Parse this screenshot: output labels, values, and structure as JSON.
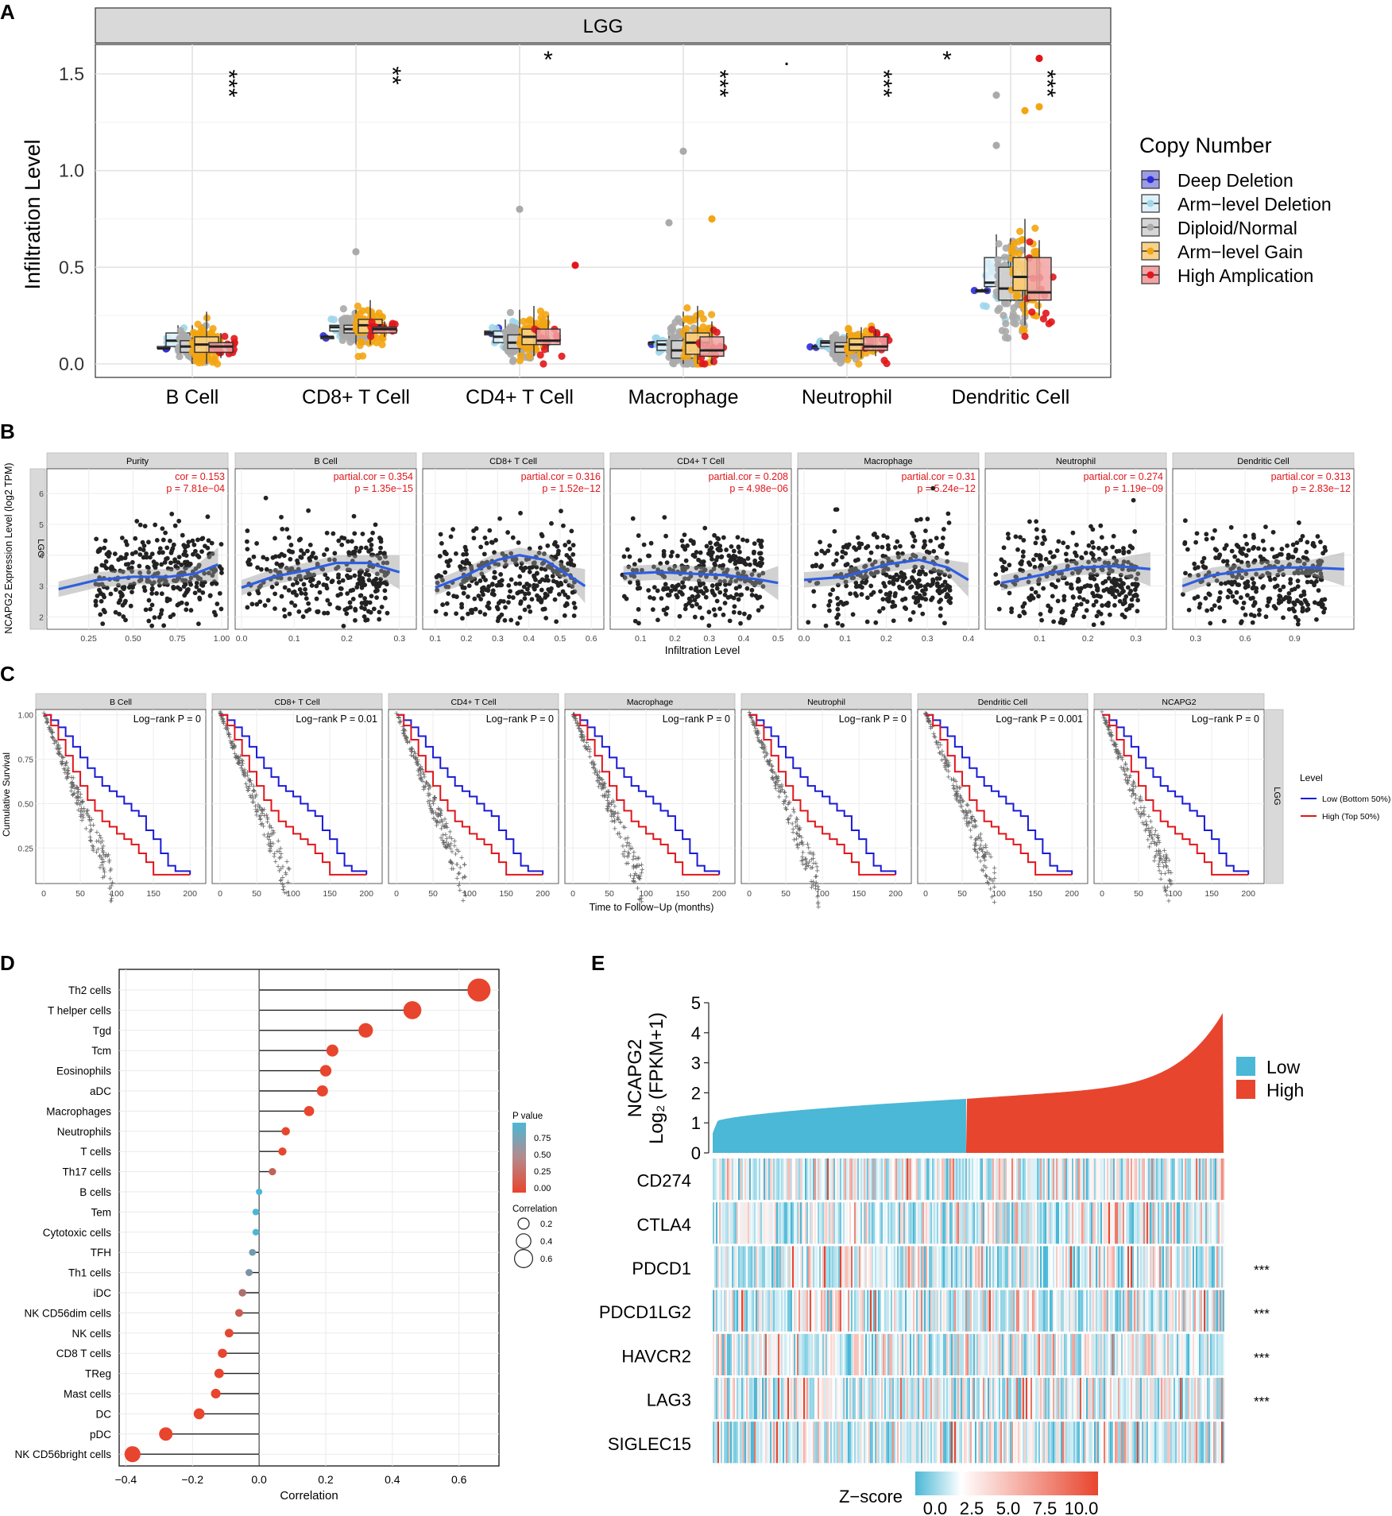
{
  "panel_labels": [
    "A",
    "B",
    "C",
    "D",
    "E"
  ],
  "chart_data": [
    {
      "id": "A",
      "type": "box",
      "title": "LGG",
      "xlabel": "",
      "ylabel": "Infiltration Level",
      "ylim": [
        0,
        1.62
      ],
      "yticks": [
        0.0,
        0.5,
        1.0,
        1.5
      ],
      "ytick_labels": [
        "0.0",
        "0.5",
        "1.0",
        "1.5"
      ],
      "legend": {
        "title": "Copy Number",
        "position": "right",
        "entries": [
          {
            "label": "Deep Deletion",
            "color": "#2b2bd9",
            "fill": "#9b9be6"
          },
          {
            "label": "Arm−level Deletion",
            "color": "#9fd6ea",
            "fill": "#dff1f8"
          },
          {
            "label": "Diploid/Normal",
            "color": "#aaaaaa",
            "fill": "#d6d6d6"
          },
          {
            "label": "Arm−level Gain",
            "color": "#f3a512",
            "fill": "#f8d28a"
          },
          {
            "label": "High Amplication",
            "color": "#e0161b",
            "fill": "#f2a3a5"
          }
        ]
      },
      "categories": [
        "B Cell",
        "CD8+ T Cell",
        "CD4+ T Cell",
        "Macrophage",
        "Neutrophil",
        "Dendritic Cell"
      ],
      "boxes": [
        [
          [
            0.07,
            0.08,
            0.08,
            0.09,
            0.09
          ],
          [
            0.07,
            0.09,
            0.12,
            0.16,
            0.2
          ],
          [
            0.0,
            0.06,
            0.09,
            0.12,
            0.2
          ],
          [
            0.0,
            0.06,
            0.1,
            0.14,
            0.27
          ],
          [
            0.03,
            0.06,
            0.09,
            0.11,
            0.16
          ]
        ],
        [
          [
            0.13,
            0.13,
            0.14,
            0.14,
            0.15
          ],
          [
            0.16,
            0.17,
            0.19,
            0.2,
            0.22
          ],
          [
            0.1,
            0.16,
            0.18,
            0.2,
            0.28
          ],
          [
            0.1,
            0.16,
            0.2,
            0.23,
            0.33
          ],
          [
            0.14,
            0.16,
            0.18,
            0.19,
            0.22
          ]
        ],
        [
          [
            0.15,
            0.15,
            0.16,
            0.17,
            0.17
          ],
          [
            0.08,
            0.11,
            0.14,
            0.17,
            0.23
          ],
          [
            0.04,
            0.08,
            0.11,
            0.15,
            0.28
          ],
          [
            0.04,
            0.1,
            0.14,
            0.18,
            0.3
          ],
          [
            0.06,
            0.1,
            0.12,
            0.18,
            0.25
          ]
        ],
        [
          [
            0.1,
            0.1,
            0.11,
            0.11,
            0.11
          ],
          [
            0.05,
            0.07,
            0.1,
            0.12,
            0.15
          ],
          [
            0.0,
            0.03,
            0.07,
            0.12,
            0.27
          ],
          [
            0.0,
            0.05,
            0.11,
            0.16,
            0.3
          ],
          [
            0.0,
            0.04,
            0.07,
            0.14,
            0.22
          ]
        ],
        [
          [
            0.08,
            0.08,
            0.09,
            0.09,
            0.09
          ],
          [
            0.07,
            0.09,
            0.11,
            0.12,
            0.14
          ],
          [
            0.03,
            0.06,
            0.09,
            0.11,
            0.16
          ],
          [
            0.03,
            0.07,
            0.1,
            0.13,
            0.19
          ],
          [
            0.04,
            0.07,
            0.09,
            0.14,
            0.18
          ]
        ],
        [
          [
            0.38,
            0.38,
            0.38,
            0.38,
            0.39
          ],
          [
            0.4,
            0.4,
            0.42,
            0.55,
            0.67
          ],
          [
            0.32,
            0.33,
            0.39,
            0.5,
            0.65
          ],
          [
            0.2,
            0.38,
            0.45,
            0.55,
            0.75
          ],
          [
            0.25,
            0.33,
            0.37,
            0.55,
            0.64
          ]
        ]
      ],
      "annotations": [
        {
          "category": "B Cell",
          "text": "***"
        },
        {
          "category": "CD8+ T Cell",
          "text": "**"
        },
        {
          "category": "CD4+ T Cell",
          "text": "*"
        },
        {
          "category": "Macrophage",
          "text": "***"
        },
        {
          "category": "Neutrophil",
          "text": "."
        },
        {
          "category": "Neutrophil",
          "text": "***"
        },
        {
          "category": "Dendritic Cell",
          "text": "*"
        },
        {
          "category": "Dendritic Cell",
          "text": "***"
        }
      ]
    },
    {
      "id": "B",
      "type": "scatter",
      "strip_label": "LGG",
      "xlabel": "Infiltration Level",
      "ylabel": "NCAPG2 Expression Level (log2 TPM)",
      "ylim": [
        1.6,
        6.8
      ],
      "yticks": [
        2,
        3,
        4,
        5,
        6
      ],
      "facets": [
        {
          "title": "Purity",
          "stat1": "cor = 0.153",
          "stat2": "p = 7.81e−04",
          "xlim": [
            0.05,
            1.0
          ],
          "xticks": [
            0.25,
            0.5,
            0.75,
            1.0
          ],
          "xtick_labels": [
            "0.25",
            "0.50",
            "0.75",
            "1.00"
          ],
          "fit": [
            [
              0.08,
              2.9
            ],
            [
              0.3,
              3.2
            ],
            [
              0.5,
              3.3
            ],
            [
              0.7,
              3.3
            ],
            [
              0.85,
              3.4
            ],
            [
              0.98,
              3.7
            ]
          ]
        },
        {
          "title": "B Cell",
          "stat1": "partial.cor = 0.354",
          "stat2": "p = 1.35e−15",
          "xlim": [
            0.0,
            0.32
          ],
          "xticks": [
            0.0,
            0.1,
            0.2,
            0.3
          ],
          "xtick_labels": [
            "0.0",
            "0.1",
            "0.2",
            "0.3"
          ],
          "fit": [
            [
              0.0,
              2.95
            ],
            [
              0.06,
              3.3
            ],
            [
              0.12,
              3.5
            ],
            [
              0.18,
              3.75
            ],
            [
              0.24,
              3.75
            ],
            [
              0.3,
              3.45
            ]
          ]
        },
        {
          "title": "CD8+ T Cell",
          "stat1": "partial.cor = 0.316",
          "stat2": "p = 1.52e−12",
          "xlim": [
            0.08,
            0.62
          ],
          "xticks": [
            0.1,
            0.2,
            0.3,
            0.4,
            0.5,
            0.6
          ],
          "xtick_labels": [
            "0.1",
            "0.2",
            "0.3",
            "0.4",
            "0.5",
            "0.6"
          ],
          "fit": [
            [
              0.1,
              2.95
            ],
            [
              0.2,
              3.35
            ],
            [
              0.3,
              3.85
            ],
            [
              0.37,
              4.0
            ],
            [
              0.45,
              3.85
            ],
            [
              0.52,
              3.4
            ],
            [
              0.58,
              3.0
            ]
          ]
        },
        {
          "title": "CD4+ T Cell",
          "stat1": "partial.cor = 0.208",
          "stat2": "p = 4.98e−06",
          "xlim": [
            0.03,
            0.52
          ],
          "xticks": [
            0.1,
            0.2,
            0.3,
            0.4,
            0.5
          ],
          "xtick_labels": [
            "0.1",
            "0.2",
            "0.3",
            "0.4",
            "0.5"
          ],
          "fit": [
            [
              0.05,
              3.4
            ],
            [
              0.15,
              3.45
            ],
            [
              0.25,
              3.4
            ],
            [
              0.35,
              3.35
            ],
            [
              0.45,
              3.2
            ],
            [
              0.5,
              3.1
            ]
          ]
        },
        {
          "title": "Macrophage",
          "stat1": "partial.cor = 0.31",
          "stat2": "p = 5.24e−12",
          "xlim": [
            0.0,
            0.41
          ],
          "xticks": [
            0.0,
            0.1,
            0.2,
            0.3,
            0.4
          ],
          "xtick_labels": [
            "0.0",
            "0.1",
            "0.2",
            "0.3",
            "0.4"
          ],
          "fit": [
            [
              0.0,
              3.2
            ],
            [
              0.1,
              3.3
            ],
            [
              0.2,
              3.7
            ],
            [
              0.28,
              3.85
            ],
            [
              0.35,
              3.6
            ],
            [
              0.4,
              3.2
            ]
          ]
        },
        {
          "title": "Neutrophil",
          "stat1": "partial.cor = 0.274",
          "stat2": "p = 1.19e−09",
          "xlim": [
            0.0,
            0.35
          ],
          "xticks": [
            0.1,
            0.2,
            0.3
          ],
          "xtick_labels": [
            "0.1",
            "0.2",
            "0.3"
          ],
          "fit": [
            [
              0.02,
              3.1
            ],
            [
              0.1,
              3.35
            ],
            [
              0.18,
              3.6
            ],
            [
              0.26,
              3.65
            ],
            [
              0.33,
              3.55
            ]
          ]
        },
        {
          "title": "Dendritic Cell",
          "stat1": "partial.cor = 0.313",
          "stat2": "p = 2.83e−12",
          "xlim": [
            0.2,
            1.22
          ],
          "xticks": [
            0.3,
            0.6,
            0.9
          ],
          "xtick_labels": [
            "0.3",
            "0.6",
            "0.9"
          ],
          "fit": [
            [
              0.22,
              3.0
            ],
            [
              0.4,
              3.35
            ],
            [
              0.6,
              3.5
            ],
            [
              0.8,
              3.6
            ],
            [
              1.0,
              3.6
            ],
            [
              1.2,
              3.55
            ]
          ]
        }
      ]
    },
    {
      "id": "C",
      "type": "line",
      "strip_label": "LGG",
      "xlabel": "Time to Follow−Up (months)",
      "ylabel": "Cumulative Survival",
      "xlim": [
        0,
        215
      ],
      "ylim": [
        0.05,
        1.03
      ],
      "xticks": [
        0,
        50,
        100,
        150,
        200
      ],
      "yticks": [
        0.25,
        0.5,
        0.75,
        1.0
      ],
      "ytick_labels": [
        "0.25",
        "0.50",
        "0.75",
        "1.00"
      ],
      "legend": {
        "title": "Level",
        "position": "right",
        "entries": [
          {
            "label": "Low (Bottom 50%)",
            "color": "#1a1ad8"
          },
          {
            "label": "High (Top 50%)",
            "color": "#e0161b"
          }
        ]
      },
      "facets": [
        {
          "title": "B Cell",
          "logrank": "Log−rank P = 0"
        },
        {
          "title": "CD8+ T Cell",
          "logrank": "Log−rank P = 0.01"
        },
        {
          "title": "CD4+ T Cell",
          "logrank": "Log−rank P = 0"
        },
        {
          "title": "Macrophage",
          "logrank": "Log−rank P = 0"
        },
        {
          "title": "Neutrophil",
          "logrank": "Log−rank P = 0"
        },
        {
          "title": "Dendritic Cell",
          "logrank": "Log−rank P = 0.001"
        },
        {
          "title": "NCAPG2",
          "logrank": "Log−rank P = 0"
        }
      ],
      "series": [
        {
          "name": "Low (Bottom 50%)",
          "x": [
            0,
            10,
            20,
            30,
            40,
            50,
            60,
            70,
            80,
            90,
            100,
            110,
            120,
            130,
            140,
            150,
            160,
            170,
            180,
            200
          ],
          "y": [
            1.0,
            0.97,
            0.93,
            0.88,
            0.82,
            0.76,
            0.7,
            0.65,
            0.6,
            0.57,
            0.54,
            0.5,
            0.46,
            0.43,
            0.35,
            0.3,
            0.22,
            0.15,
            0.12,
            0.1
          ]
        },
        {
          "name": "High (Top 50%)",
          "x": [
            0,
            10,
            20,
            30,
            40,
            50,
            60,
            70,
            80,
            90,
            100,
            110,
            120,
            130,
            140,
            150,
            160,
            200
          ],
          "y": [
            1.0,
            0.94,
            0.86,
            0.77,
            0.68,
            0.6,
            0.52,
            0.46,
            0.4,
            0.37,
            0.33,
            0.3,
            0.27,
            0.22,
            0.17,
            0.1,
            0.1,
            0.1
          ]
        }
      ]
    },
    {
      "id": "D",
      "type": "lollipop",
      "xlabel": "Correlation",
      "ylabel": "",
      "xlim": [
        -0.42,
        0.72
      ],
      "xticks": [
        -0.4,
        -0.2,
        0.0,
        0.2,
        0.4,
        0.6
      ],
      "xtick_labels": [
        "−0.4",
        "−0.2",
        "0.0",
        "0.2",
        "0.4",
        "0.6"
      ],
      "categories": [
        "Th2 cells",
        "T helper cells",
        "Tgd",
        "Tcm",
        "Eosinophils",
        "aDC",
        "Macrophages",
        "Neutrophils",
        "T cells",
        "Th17 cells",
        "B cells",
        "Tem",
        "Cytotoxic cells",
        "TFH",
        "Th1 cells",
        "iDC",
        "NK CD56dim cells",
        "NK cells",
        "CD8 T cells",
        "TReg",
        "Mast cells",
        "DC",
        "pDC",
        "NK CD56bright cells"
      ],
      "values": [
        0.66,
        0.46,
        0.32,
        0.22,
        0.2,
        0.19,
        0.15,
        0.08,
        0.07,
        0.04,
        0.0,
        -0.01,
        -0.01,
        -0.02,
        -0.03,
        -0.05,
        -0.06,
        -0.09,
        -0.11,
        -0.12,
        -0.13,
        -0.18,
        -0.28,
        -0.38
      ],
      "pvalues": [
        0,
        0,
        0,
        0,
        0,
        0,
        0,
        0.001,
        0.002,
        0.2,
        0.9,
        0.85,
        0.8,
        0.6,
        0.55,
        0.3,
        0.15,
        0.02,
        0.005,
        0.003,
        0.002,
        0,
        0,
        0
      ],
      "legend": {
        "position": "right",
        "p_title": "P value",
        "p_ticks": [
          "0.75",
          "0.50",
          "0.25",
          "0.00"
        ],
        "size_title": "Correlation",
        "size_labels": [
          "0.2",
          "0.4",
          "0.6"
        ]
      }
    },
    {
      "id": "E",
      "type": "heatmap",
      "ylabel_line1": "NCAPG2",
      "ylabel_line2": "Log₂ (FPKM+1)",
      "ylim": [
        0,
        5
      ],
      "yticks": [
        0,
        1,
        2,
        3,
        4,
        5
      ],
      "groups": [
        {
          "label": "Low",
          "color": "#4ab8d6"
        },
        {
          "label": "High",
          "color": "#e8452e"
        }
      ],
      "expression_profile": {
        "low_range": [
          0.7,
          1.8
        ],
        "high_range": [
          1.8,
          4.7
        ]
      },
      "rows": [
        "CD274",
        "CTLA4",
        "PDCD1",
        "PDCD1LG2",
        "HAVCR2",
        "LAG3",
        "SIGLEC15"
      ],
      "significance": [
        "",
        "",
        "***",
        "***",
        "***",
        "***",
        ""
      ],
      "colorbar": {
        "title": "Z−score",
        "ticks": [
          "0.0",
          "2.5",
          "5.0",
          "7.5",
          "10.0"
        ],
        "low": "#4ab8d6",
        "mid": "#ffffff",
        "high": "#e8452e"
      }
    }
  ]
}
